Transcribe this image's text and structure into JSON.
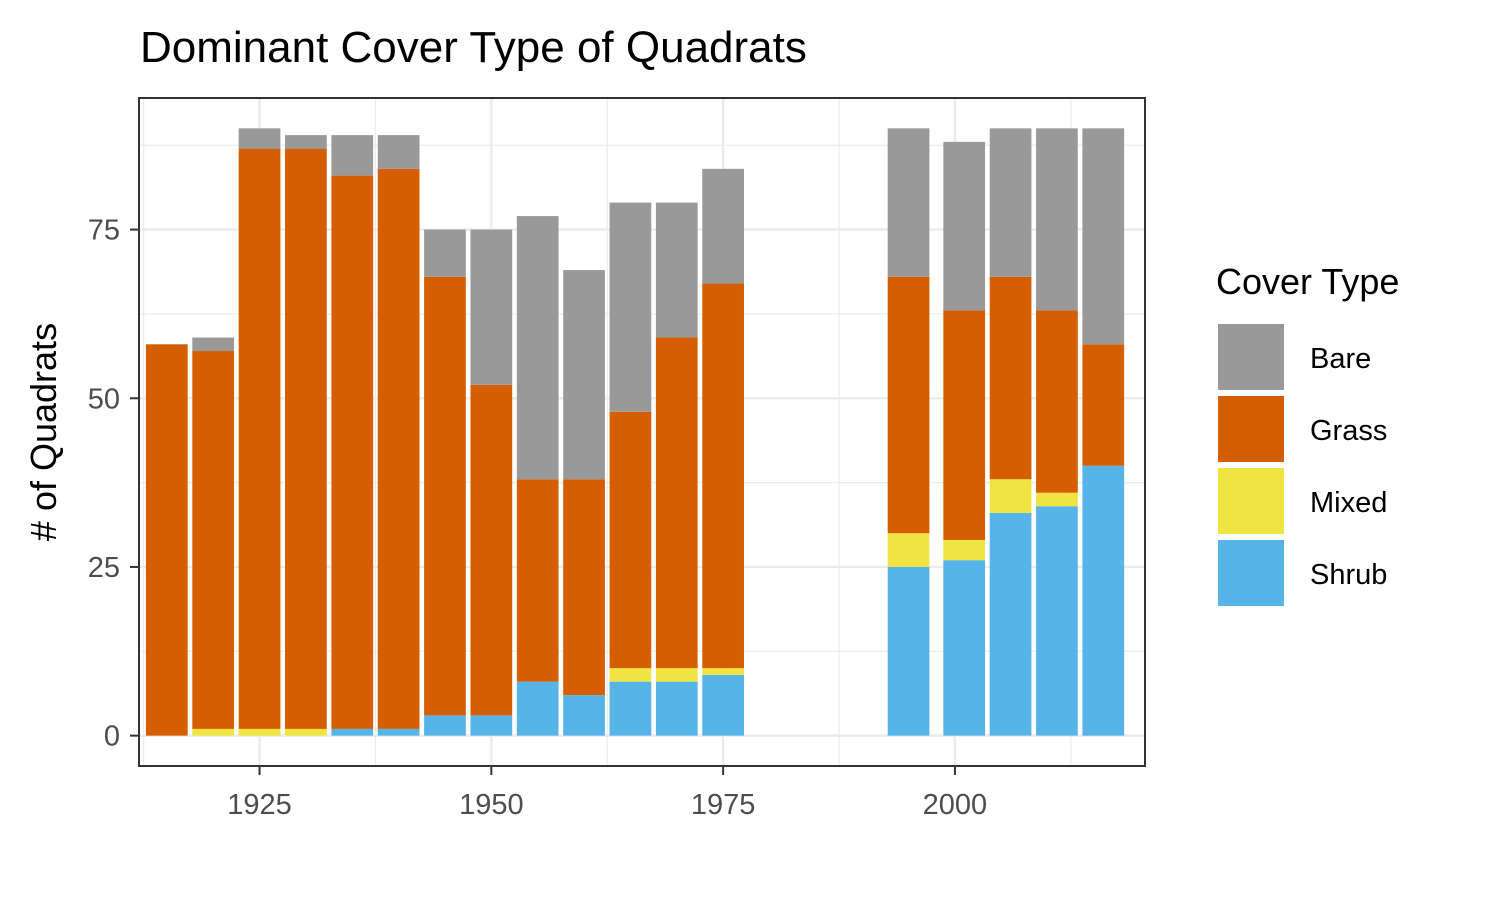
{
  "chart_data": {
    "type": "bar",
    "stacked": true,
    "title": "Dominant Cover Type of Quadrats",
    "xlabel": "",
    "ylabel": "# of Quadrats",
    "xlim": [
      1912,
      2020.5
    ],
    "ylim": [
      -4.5,
      94.5
    ],
    "xticks": [
      1925,
      1950,
      1975,
      2000
    ],
    "yticks": [
      0,
      25,
      50,
      75
    ],
    "grid": true,
    "legend": {
      "title": "Cover Type",
      "position": "right",
      "items": [
        "Bare",
        "Grass",
        "Mixed",
        "Shrub"
      ]
    },
    "colors": {
      "Bare": "#999999",
      "Grass": "#d55e00",
      "Mixed": "#f0e442",
      "Shrub": "#56b4e9"
    },
    "x": [
      1915,
      1920,
      1925,
      1930,
      1935,
      1940,
      1945,
      1950,
      1955,
      1960,
      1965,
      1970,
      1975,
      1995,
      2001,
      2006,
      2011,
      2016
    ],
    "series": [
      {
        "name": "Shrub",
        "values": [
          0,
          0,
          0,
          0,
          1,
          1,
          3,
          3,
          8,
          6,
          8,
          8,
          9,
          25,
          26,
          33,
          34,
          40
        ]
      },
      {
        "name": "Mixed",
        "values": [
          0,
          1,
          1,
          1,
          0,
          0,
          0,
          0,
          0,
          0,
          2,
          2,
          1,
          5,
          3,
          5,
          2,
          0
        ]
      },
      {
        "name": "Grass",
        "values": [
          58,
          56,
          86,
          86,
          82,
          83,
          65,
          49,
          30,
          32,
          38,
          49,
          57,
          38,
          34,
          30,
          27,
          18
        ]
      },
      {
        "name": "Bare",
        "values": [
          0,
          2,
          3,
          2,
          6,
          5,
          7,
          23,
          39,
          31,
          31,
          20,
          17,
          22,
          25,
          22,
          27,
          32
        ]
      }
    ]
  }
}
